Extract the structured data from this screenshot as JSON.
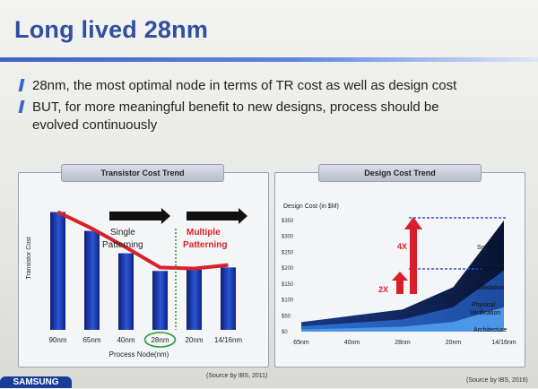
{
  "slide": {
    "title": "Long lived 28nm",
    "bullets": [
      "28nm, the most optimal node in terms of TR cost as well as design cost",
      "BUT, for more meaningful benefit to new designs, process should be",
      "evolved continuously"
    ],
    "logo_text": "SAMSUNG"
  },
  "chart_data": [
    {
      "type": "bar",
      "title": "Transistor Cost Trend",
      "xlabel": "Process Node(nm)",
      "ylabel": "Transistor Cost",
      "categories": [
        "90nm",
        "65nm",
        "40nm",
        "28nm",
        "20nm",
        "14/16nm"
      ],
      "values": [
        10,
        8.4,
        6.5,
        5.0,
        5.1,
        5.3
      ],
      "trend_line": [
        10,
        8.6,
        7.0,
        5.3,
        5.2,
        5.5
      ],
      "annotations": [
        "Single Patterning",
        "Multiple Patterning"
      ],
      "highlight_category": "28nm",
      "source": "(Source by IBS, 2011)",
      "colors": {
        "bar": "#1f3fb8",
        "trend": "#d9202a",
        "highlight": "#2a9a3a"
      }
    },
    {
      "type": "area",
      "title": "Design Cost Trend",
      "ylabel": "Design Cost (in $M)",
      "x": [
        "65nm",
        "40nm",
        "28nm",
        "20nm",
        "14/16nm"
      ],
      "y_ticks": [
        "$0",
        "$50",
        "$100",
        "$150",
        "$200",
        "$250",
        "$300",
        "$350"
      ],
      "ylim": [
        0,
        350
      ],
      "series_total": [
        30,
        50,
        70,
        140,
        350
      ],
      "layers": [
        "Software",
        "Prototype",
        "Validation",
        "Physical Verification",
        "Architecture"
      ],
      "annotations": [
        "2X",
        "4X"
      ],
      "source": "(Source by IBS, 2016)",
      "colors": {
        "dark": "#0b1a3d",
        "mid": "#1f4a9a",
        "light": "#4d8fe0",
        "arrow": "#d9202a"
      }
    }
  ]
}
